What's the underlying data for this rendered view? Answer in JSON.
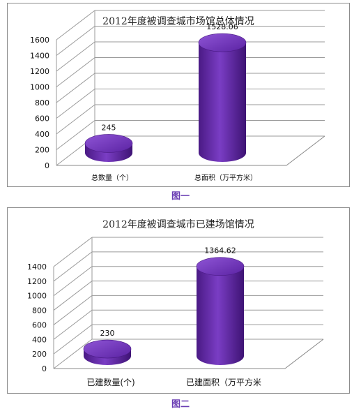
{
  "chart_data": [
    {
      "type": "bar",
      "title": "2012年度被调查城市场馆总体情况",
      "categories": [
        "总数量（个）",
        "总面积（万平方米）"
      ],
      "values": [
        245,
        1528.06
      ],
      "data_labels": [
        "245",
        "1528.06"
      ],
      "ylim": [
        0,
        1600
      ],
      "yticks": [
        0,
        200,
        400,
        600,
        800,
        1000,
        1200,
        1400,
        1600
      ],
      "grid": true,
      "bar_shape": "cylinder",
      "bar_color": "#6a2cae",
      "caption": "图一"
    },
    {
      "type": "bar",
      "title": "2012年度被调查城市已建场馆情况",
      "categories": [
        "已建数量(个)",
        "已建面积（万平方米"
      ],
      "values": [
        230,
        1364.62
      ],
      "data_labels": [
        "230",
        "1364.62"
      ],
      "ylim": [
        0,
        1400
      ],
      "yticks": [
        0,
        200,
        400,
        600,
        800,
        1000,
        1200,
        1400
      ],
      "grid": true,
      "bar_shape": "cylinder",
      "bar_color": "#6a2cae",
      "caption": "图二"
    }
  ]
}
